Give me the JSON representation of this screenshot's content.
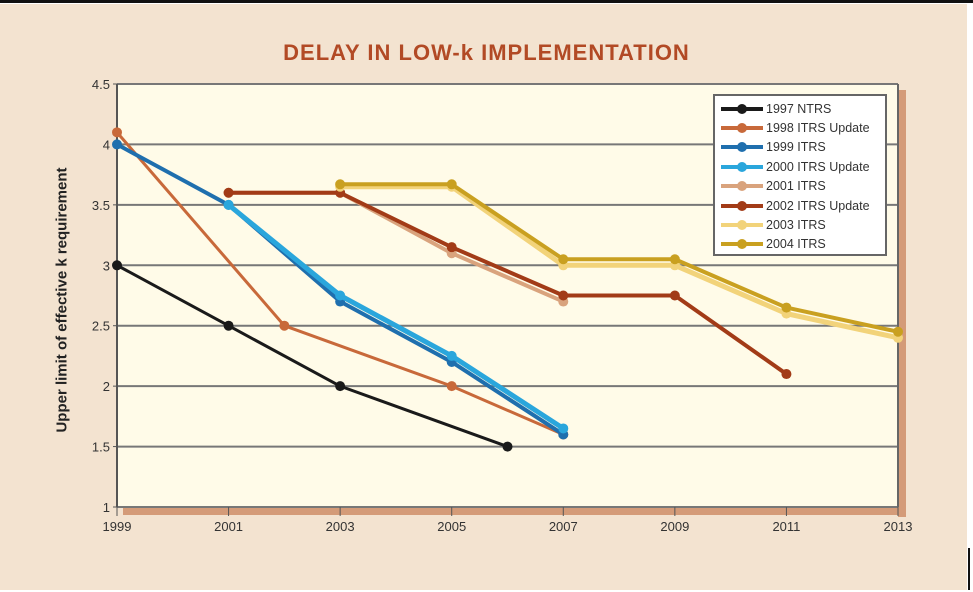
{
  "chart_data": {
    "type": "line",
    "title": "DELAY IN LOW-k IMPLEMENTATION",
    "xlabel": "",
    "ylabel": "Upper limit of effective k requirement",
    "xlim": [
      1999,
      2013
    ],
    "ylim": [
      1,
      4.5
    ],
    "x_ticks": [
      "1999",
      "2001",
      "2003",
      "2005",
      "2007",
      "2009",
      "2011",
      "2013"
    ],
    "y_ticks": [
      "1",
      "1.5",
      "2",
      "2.5",
      "3",
      "3.5",
      "4",
      "4.5"
    ],
    "grid": "horizontal",
    "legend_position": "top-right",
    "series": [
      {
        "name": "1997 NTRS",
        "color": "#1a1a1a",
        "x": [
          1999,
          2001,
          2003,
          2006
        ],
        "y": [
          3.0,
          2.5,
          2.0,
          1.5
        ]
      },
      {
        "name": "1998 ITRS Update",
        "color": "#c8693a",
        "x": [
          1999,
          2002,
          2005,
          2007
        ],
        "y": [
          4.1,
          2.5,
          2.0,
          1.6
        ]
      },
      {
        "name": "1999 ITRS",
        "color": "#1f6fae",
        "x": [
          1999,
          2001,
          2003,
          2005,
          2007
        ],
        "y": [
          4.0,
          3.5,
          2.7,
          2.2,
          1.6
        ]
      },
      {
        "name": "2000 ITRS Update",
        "color": "#2aa6dc",
        "x": [
          2001,
          2003,
          2005,
          2007
        ],
        "y": [
          3.5,
          2.75,
          2.25,
          1.65
        ]
      },
      {
        "name": "2001 ITRS",
        "color": "#d9a37d",
        "x": [
          2001,
          2003,
          2005,
          2007
        ],
        "y": [
          3.6,
          3.6,
          3.1,
          2.7
        ]
      },
      {
        "name": "2002 ITRS Update",
        "color": "#a23b17",
        "x": [
          2001,
          2003,
          2005,
          2007,
          2009,
          2011
        ],
        "y": [
          3.6,
          3.6,
          3.15,
          2.75,
          2.75,
          2.1
        ]
      },
      {
        "name": "2003 ITRS",
        "color": "#f2d37a",
        "x": [
          2003,
          2005,
          2007,
          2009,
          2011,
          2013
        ],
        "y": [
          3.65,
          3.65,
          3.0,
          3.0,
          2.6,
          2.4
        ]
      },
      {
        "name": "2004 ITRS",
        "color": "#c9a020",
        "x": [
          2003,
          2005,
          2007,
          2009,
          2011,
          2013
        ],
        "y": [
          3.67,
          3.67,
          3.05,
          3.05,
          2.65,
          2.45
        ]
      }
    ]
  }
}
